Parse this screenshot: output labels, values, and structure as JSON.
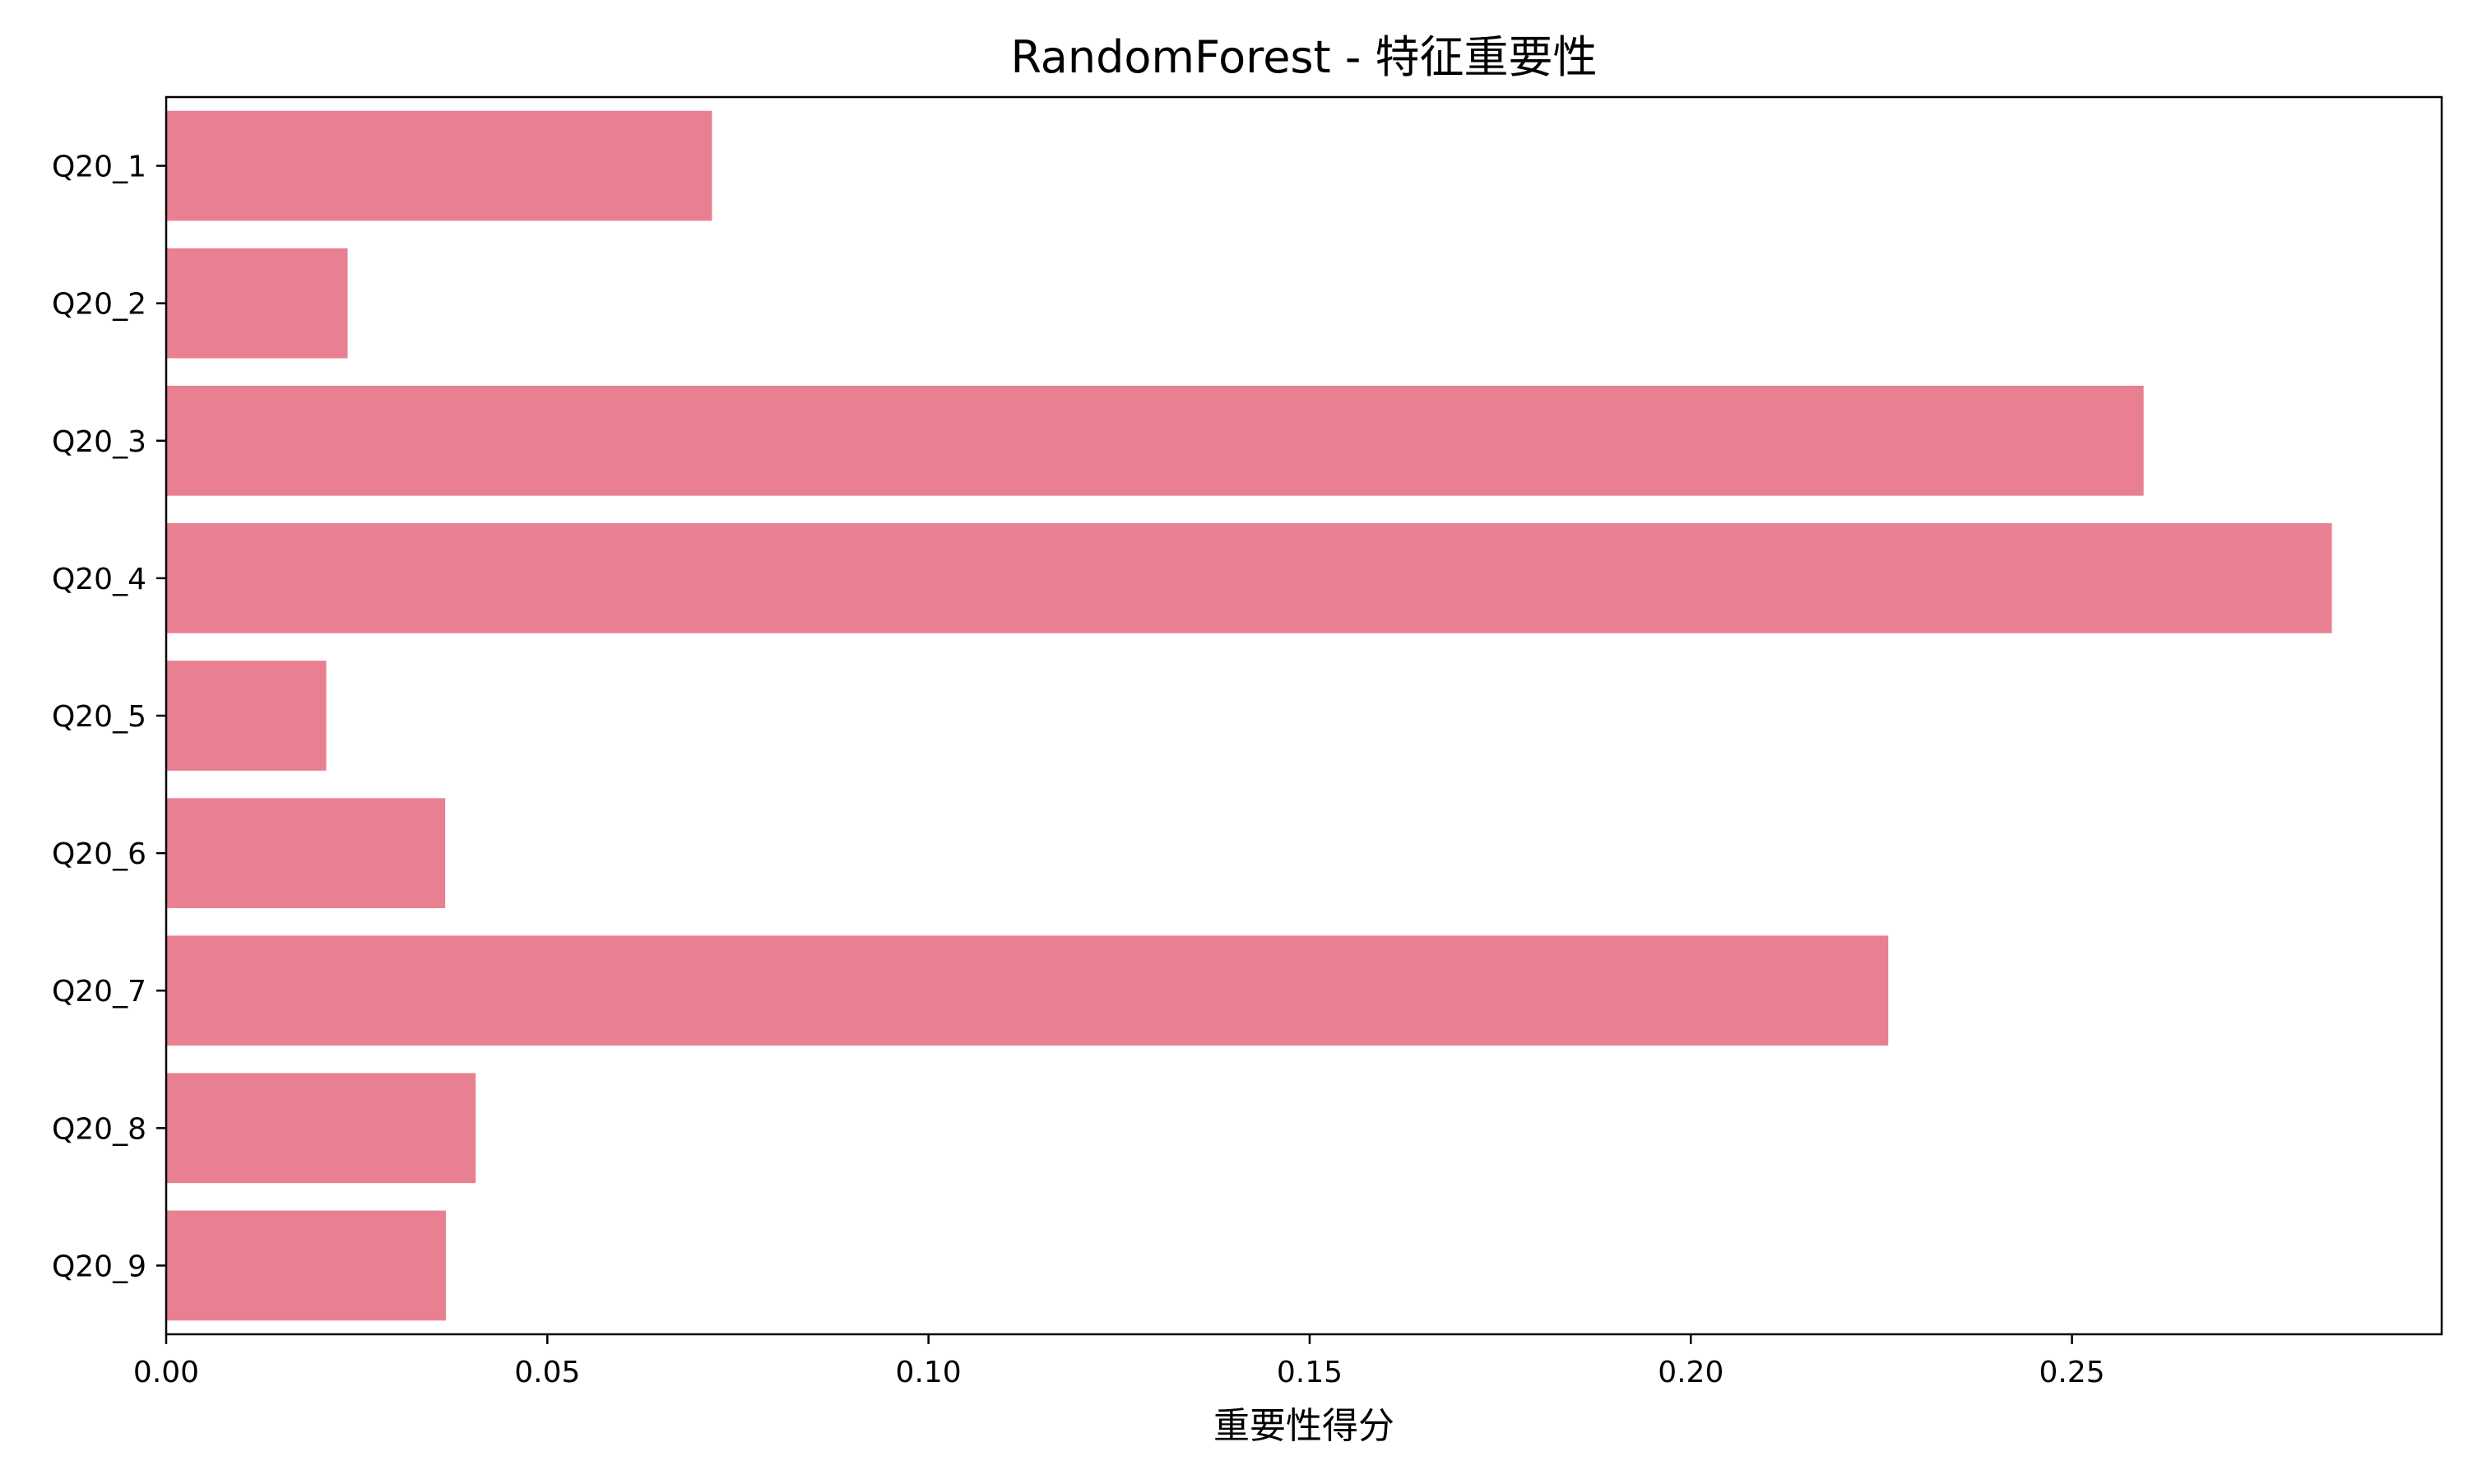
{
  "chart_data": {
    "type": "bar",
    "orientation": "horizontal",
    "title": "RandomForest - 特征重要性",
    "xlabel": "重要性得分",
    "ylabel": "",
    "categories": [
      "Q20_1",
      "Q20_2",
      "Q20_3",
      "Q20_4",
      "Q20_5",
      "Q20_6",
      "Q20_7",
      "Q20_8",
      "Q20_9"
    ],
    "values": [
      0.0716,
      0.0238,
      0.2594,
      0.2841,
      0.021,
      0.0366,
      0.2259,
      0.0406,
      0.0367
    ],
    "xlim": [
      0,
      0.2985
    ],
    "xticks": [
      0.0,
      0.05,
      0.1,
      0.15,
      0.2,
      0.25
    ],
    "xtick_labels": [
      "0.00",
      "0.05",
      "0.10",
      "0.15",
      "0.20",
      "0.25"
    ],
    "grid": false,
    "bar_color": "#e88092"
  }
}
